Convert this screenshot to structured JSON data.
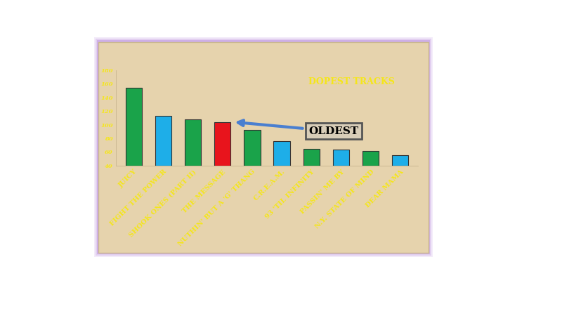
{
  "chart_data": {
    "type": "bar",
    "title": "DOPEST TRACKS",
    "categories": [
      "JUICY",
      "FIGHT THE POWER",
      "SHOOK ONES (PART II)",
      "THE MESSAGE",
      "NUTHIN' BUT A 'G' THANG",
      "C.R.E.A.M.",
      "93 'TIL INFINITY",
      "PASSIN' ME BY",
      "N.Y. STATE OF MIND",
      "DEAR MAMA"
    ],
    "values": [
      154,
      113,
      108,
      104,
      92,
      76,
      65,
      63,
      61,
      55
    ],
    "colors": [
      "#1aa34a",
      "#1eaee8",
      "#1aa34a",
      "#e8141c",
      "#1aa34a",
      "#1eaee8",
      "#1aa34a",
      "#1eaee8",
      "#1aa34a",
      "#1eaee8"
    ],
    "ylim": [
      40,
      180
    ],
    "yticks": [
      40,
      60,
      80,
      100,
      120,
      140,
      160,
      180
    ],
    "grid": false,
    "annotation": {
      "text": "OLDEST",
      "category": "THE MESSAGE"
    }
  }
}
